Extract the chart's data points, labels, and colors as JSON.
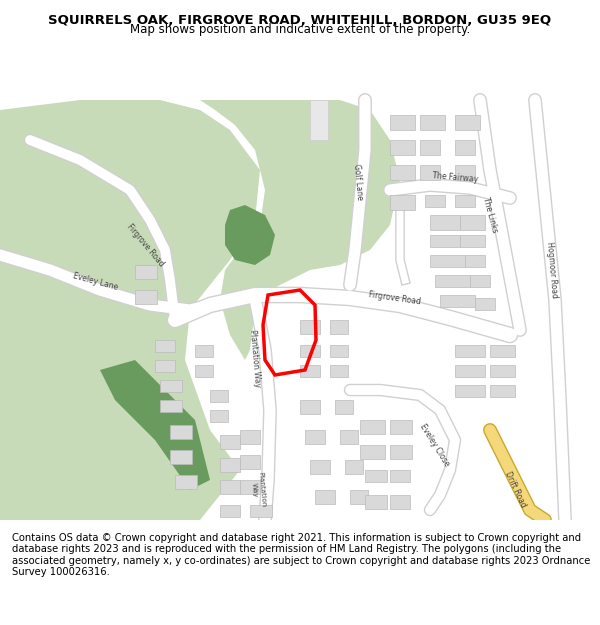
{
  "title_line1": "SQUIRRELS OAK, FIRGROVE ROAD, WHITEHILL, BORDON, GU35 9EQ",
  "title_line2": "Map shows position and indicative extent of the property.",
  "footer_text": "Contains OS data © Crown copyright and database right 2021. This information is subject to Crown copyright and database rights 2023 and is reproduced with the permission of HM Land Registry. The polygons (including the associated geometry, namely x, y co-ordinates) are subject to Crown copyright and database rights 2023 Ordnance Survey 100026316.",
  "bg_color": "#ffffff",
  "map_bg": "#f2efe9",
  "green_light": "#c8dbb8",
  "green_dark": "#6a9b5e",
  "road_color": "#ffffff",
  "road_outline": "#d0d0d0",
  "road_yellow": "#f5d87a",
  "building_color": "#d9d9d9",
  "building_outline": "#bbbbbb",
  "highlight_color": "#ff0000",
  "title_fontsize": 9.5,
  "subtitle_fontsize": 8.5,
  "footer_fontsize": 7.2
}
